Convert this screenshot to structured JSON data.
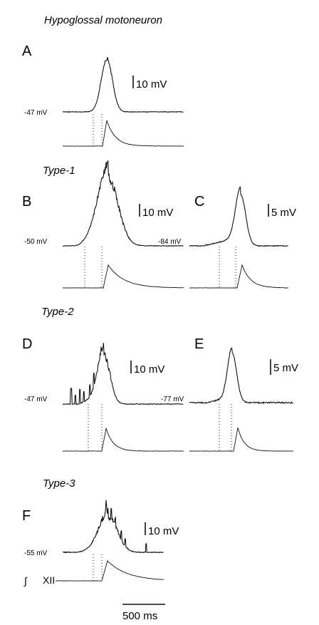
{
  "figure_title": "Hypoglossal motoneuron",
  "sections": {
    "type1": "Type-1",
    "type2": "Type-2",
    "type3": "Type-3"
  },
  "panels": {
    "A": {
      "label": "A",
      "baseline": "-47 mV",
      "scale": "10 mV"
    },
    "B": {
      "label": "B",
      "baseline": "-50 mV",
      "scale": "10 mV"
    },
    "C": {
      "label": "C",
      "baseline": "-84 mV",
      "scale": "5 mV"
    },
    "D": {
      "label": "D",
      "baseline": "-47 mV",
      "scale": "10 mV"
    },
    "E": {
      "label": "E",
      "baseline": "-77 mV",
      "scale": "5 mV"
    },
    "F": {
      "label": "F",
      "baseline": "-55 mV",
      "scale": "10 mV"
    }
  },
  "integrated_label": "XII",
  "integral_symbol": "∫",
  "time_scale": "500 ms"
}
